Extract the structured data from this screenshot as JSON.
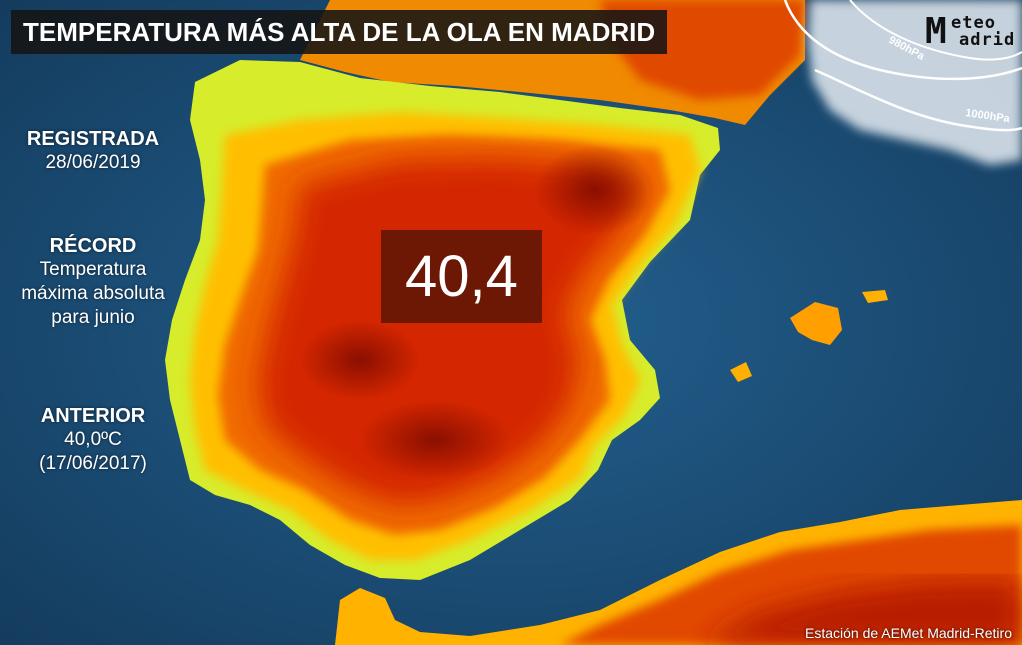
{
  "title": "TEMPERATURA MÁS ALTA DE LA OLA EN MADRID",
  "logo": {
    "mark": "M",
    "line1": "eteo",
    "line2": "adrid"
  },
  "isobars": [
    "980hPa",
    "1000hPa"
  ],
  "registrada": {
    "heading": "REGISTRADA",
    "date": "28/06/2019"
  },
  "record": {
    "heading": "RÉCORD",
    "line1": "Temperatura",
    "line2": "máxima absoluta",
    "line3": "para junio"
  },
  "anterior": {
    "heading": "ANTERIOR",
    "value": "40,0ºC",
    "date": "(17/06/2017)"
  },
  "temperature": "40,4",
  "station": "Estación de AEMet Madrid-Retiro",
  "colors": {
    "sea": "#1d4f7a",
    "hot": "#c21c00",
    "warm": "#f06a00",
    "mild": "#ffd400",
    "cool": "#c5ec2c"
  }
}
